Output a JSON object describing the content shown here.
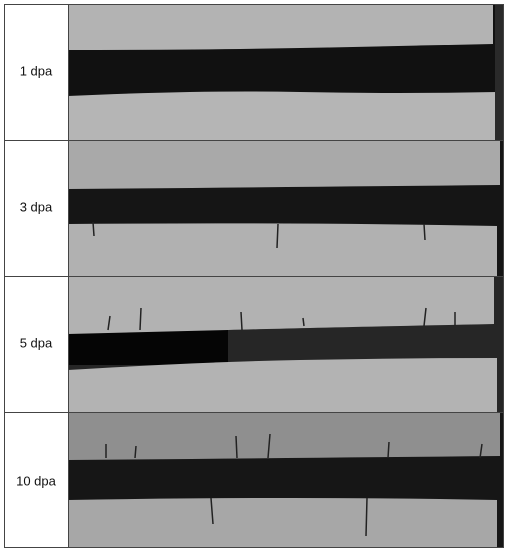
{
  "figure": {
    "rows": [
      {
        "label": "1 dpa"
      },
      {
        "label": "3 dpa"
      },
      {
        "label": "5 dpa"
      },
      {
        "label": "10 dpa"
      }
    ]
  }
}
